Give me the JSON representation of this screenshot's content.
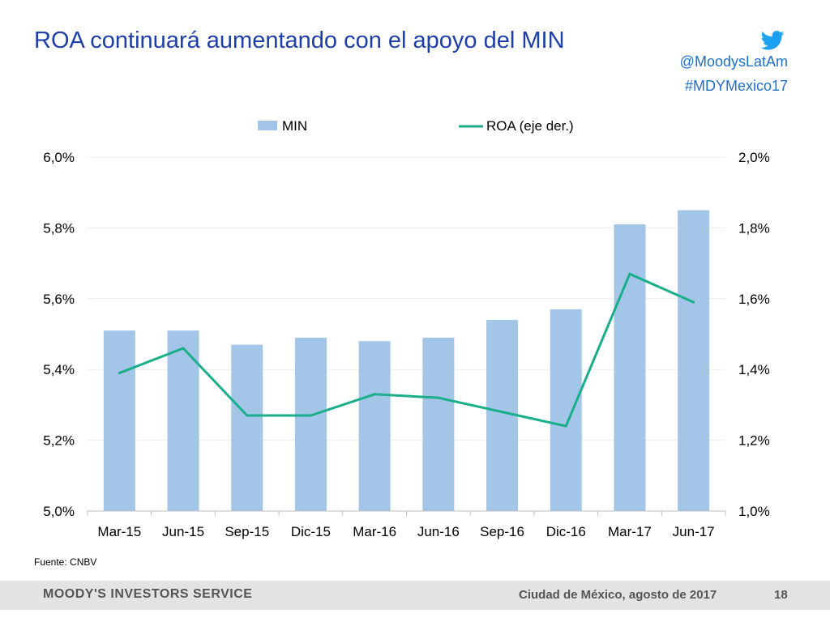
{
  "slide": {
    "title": "ROA continuará aumentando con el apoyo del MIN",
    "twitter_handle": "@MoodysLatAm",
    "hashtag": "#MDYMexico17",
    "source": "Fuente: CNBV",
    "icon": "twitter-bird-icon"
  },
  "footer": {
    "brand": "MOODY'S INVESTORS SERVICE",
    "location_date": "Ciudad de México, agosto de 2017",
    "page_number": "18"
  },
  "chart_data": {
    "type": "bar",
    "categories": [
      "Mar-15",
      "Jun-15",
      "Sep-15",
      "Dic-15",
      "Mar-16",
      "Jun-16",
      "Sep-16",
      "Dic-16",
      "Mar-17",
      "Jun-17"
    ],
    "series": [
      {
        "name": "MIN",
        "type": "bar",
        "axis": "left",
        "color": "#a3c6e8",
        "values": [
          5.51,
          5.51,
          5.47,
          5.49,
          5.48,
          5.49,
          5.54,
          5.57,
          5.81,
          5.85
        ]
      },
      {
        "name": "ROA (eje der.)",
        "type": "line",
        "axis": "right",
        "color": "#1aae8a",
        "values": [
          1.39,
          1.46,
          1.27,
          1.27,
          1.33,
          1.32,
          1.28,
          1.24,
          1.67,
          1.59
        ]
      }
    ],
    "y_left": {
      "lim": [
        5.0,
        6.0
      ],
      "ticks": [
        5.0,
        5.2,
        5.4,
        5.6,
        5.8,
        6.0
      ],
      "tick_labels": [
        "5,0%",
        "5,2%",
        "5,4%",
        "5,6%",
        "5,8%",
        "6,0%"
      ]
    },
    "y_right": {
      "lim": [
        1.0,
        2.0
      ],
      "ticks": [
        1.0,
        1.2,
        1.4,
        1.6,
        1.8,
        2.0
      ],
      "tick_labels": [
        "1,0%",
        "1,2%",
        "1,4%",
        "1,6%",
        "1,8%",
        "2,0%"
      ]
    },
    "grid": true,
    "legend": "top-center"
  }
}
